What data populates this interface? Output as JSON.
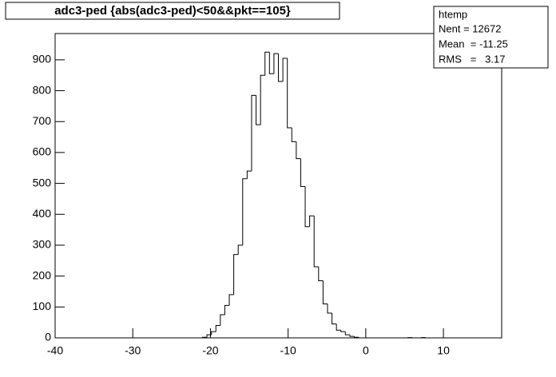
{
  "chart_data": {
    "type": "histogram",
    "title": "adc3-ped {abs(adc3-ped)<50&&pkt==105}",
    "stats": {
      "name": "htemp",
      "lines": [
        "Nent = 12672",
        "Mean  = -11.25",
        "RMS   =   3.17"
      ]
    },
    "bins": [
      -40,
      -39.425,
      -38.85,
      -38.275,
      -37.7,
      -37.125,
      -36.55,
      -35.975,
      -35.4,
      -34.825,
      -34.25,
      -33.675,
      -33.1,
      -32.525,
      -31.95,
      -31.375,
      -30.8,
      -30.225,
      -29.65,
      -29.075,
      -28.5,
      -27.925,
      -27.35,
      -26.775,
      -26.2,
      -25.625,
      -25.05,
      -24.475,
      -23.9,
      -23.325,
      -22.75,
      -22.175,
      -21.6,
      -21.025,
      -20.45,
      -19.875,
      -19.3,
      -18.725,
      -18.15,
      -17.575,
      -17,
      -16.425,
      -15.85,
      -15.275,
      -14.7,
      -14.125,
      -13.55,
      -12.975,
      -12.4,
      -11.825,
      -11.25,
      -10.675,
      -10.1,
      -9.525,
      -8.95,
      -8.375,
      -7.8,
      -7.225,
      -6.65,
      -6.075,
      -5.5,
      -4.925,
      -4.35,
      -3.775,
      -3.2,
      -2.625,
      -2.05,
      -1.475,
      -0.9,
      -0.325,
      0.25,
      0.825,
      1.4,
      1.975,
      2.55,
      3.125,
      3.7,
      4.275,
      4.85,
      5.425,
      6,
      6.575,
      7.15,
      7.725,
      8.3,
      8.875,
      9.45,
      10.025,
      10.6,
      11.175,
      11.75,
      12.325,
      12.9,
      13.475,
      14.05,
      14.625,
      15.2,
      15.775,
      16.35,
      16.925,
      17.5
    ],
    "values": [
      0,
      0,
      0,
      0,
      0,
      0,
      0,
      0,
      0,
      0,
      0,
      0,
      0,
      0,
      0,
      0,
      0,
      0,
      0,
      0,
      0,
      0,
      0,
      0,
      0,
      0,
      0,
      0,
      0,
      0,
      0,
      0,
      0,
      2,
      10,
      20,
      40,
      75,
      105,
      140,
      270,
      300,
      515,
      540,
      785,
      690,
      850,
      925,
      855,
      920,
      830,
      905,
      680,
      635,
      580,
      490,
      360,
      395,
      230,
      185,
      110,
      80,
      45,
      25,
      20,
      10,
      5,
      2,
      0,
      0,
      0,
      0,
      0,
      0,
      0,
      0,
      0,
      0,
      0,
      1,
      0,
      0,
      1,
      0,
      0,
      0,
      0,
      0,
      0,
      0,
      0,
      0,
      0,
      0,
      0,
      0,
      0,
      0,
      0,
      0
    ],
    "color": "#000000",
    "xlim": [
      -40,
      17.5
    ],
    "xticks": [
      -40,
      -30,
      -20,
      -10,
      0,
      10
    ],
    "ylim": [
      0,
      985
    ],
    "yticks": [
      0,
      100,
      200,
      300,
      400,
      500,
      600,
      700,
      800,
      900
    ]
  }
}
